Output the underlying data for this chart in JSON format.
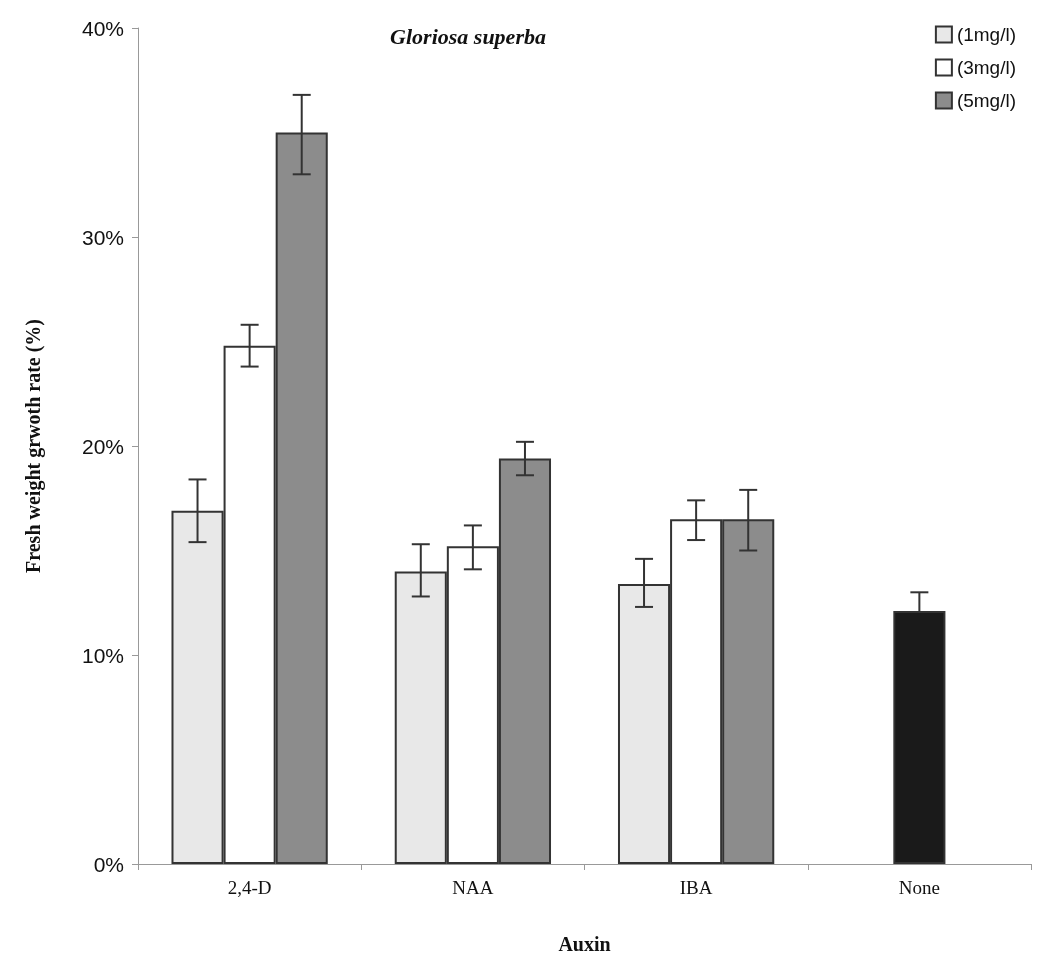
{
  "chart_data": {
    "type": "bar",
    "title": "Gloriosa superba",
    "xlabel": "Auxin",
    "ylabel": "Fresh weight grwoth rate (%)",
    "categories": [
      "2,4-D",
      "NAA",
      "IBA",
      "None"
    ],
    "series": [
      {
        "name": "(1mg/l)",
        "color": "#e8e8e8",
        "values": [
          16.9,
          14.0,
          13.4,
          null
        ],
        "errors": [
          [
            15.4,
            18.4
          ],
          [
            12.8,
            15.3
          ],
          [
            12.3,
            14.6
          ],
          null
        ]
      },
      {
        "name": "(3mg/l)",
        "color": "#ffffff",
        "values": [
          24.8,
          15.2,
          16.5,
          null
        ],
        "errors": [
          [
            23.8,
            25.8
          ],
          [
            14.1,
            16.2
          ],
          [
            15.5,
            17.4
          ],
          null
        ]
      },
      {
        "name": "(5mg/l)",
        "color": "#8c8c8c",
        "values": [
          35.0,
          19.4,
          16.5,
          null
        ],
        "errors": [
          [
            33.0,
            36.8
          ],
          [
            18.6,
            20.2
          ],
          [
            15.0,
            17.9
          ],
          null
        ]
      },
      {
        "color": "#1a1a1a",
        "values": [
          null,
          null,
          null,
          12.1
        ],
        "errors": [
          null,
          null,
          null,
          [
            12.1,
            13.0
          ]
        ]
      }
    ],
    "ylim": [
      0,
      40
    ],
    "yticks": [
      {
        "value": 0,
        "label": "0%"
      },
      {
        "value": 10,
        "label": "10%"
      },
      {
        "value": 20,
        "label": "20%"
      },
      {
        "value": 30,
        "label": "30%"
      },
      {
        "value": 40,
        "label": "40%"
      }
    ],
    "grid": false,
    "legend": "top right"
  }
}
